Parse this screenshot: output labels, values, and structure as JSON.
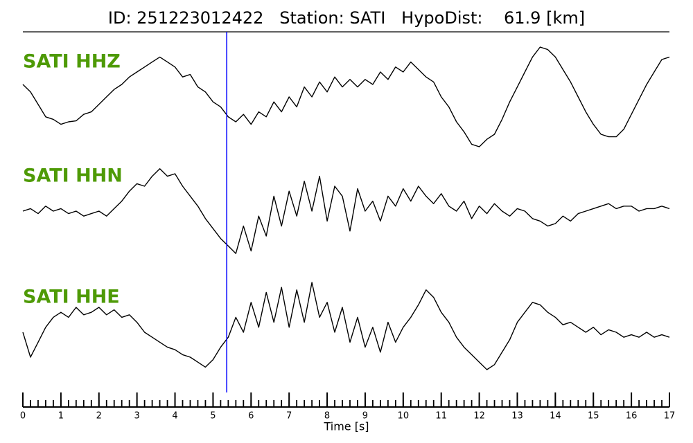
{
  "chart_data": {
    "type": "line",
    "title": "ID: 251223012422   Station: SATI   HypoDist:    61.9 [km]",
    "xlabel": "Time [s]",
    "xlim": [
      0,
      17
    ],
    "xticks": [
      0,
      1,
      2,
      3,
      4,
      5,
      6,
      7,
      8,
      9,
      10,
      11,
      12,
      13,
      14,
      15,
      16,
      17
    ],
    "minor_tick_step": 0.2,
    "pick_time": 5.36,
    "pick_color": "#0000ff",
    "label_color": "#4e9a06",
    "x": [
      0,
      0.2,
      0.4,
      0.6,
      0.8,
      1,
      1.2,
      1.4,
      1.6,
      1.8,
      2,
      2.2,
      2.4,
      2.6,
      2.8,
      3,
      3.2,
      3.4,
      3.6,
      3.8,
      4,
      4.2,
      4.4,
      4.6,
      4.8,
      5,
      5.2,
      5.4,
      5.6,
      5.8,
      6,
      6.2,
      6.4,
      6.6,
      6.8,
      7,
      7.2,
      7.4,
      7.6,
      7.8,
      8,
      8.2,
      8.4,
      8.6,
      8.8,
      9,
      9.2,
      9.4,
      9.6,
      9.8,
      10,
      10.2,
      10.4,
      10.6,
      10.8,
      11,
      11.2,
      11.4,
      11.6,
      11.8,
      12,
      12.2,
      12.4,
      12.6,
      12.8,
      13,
      13.2,
      13.4,
      13.6,
      13.8,
      14,
      14.2,
      14.4,
      14.6,
      14.8,
      15,
      15.2,
      15.4,
      15.6,
      15.8,
      16,
      16.2,
      16.4,
      16.6,
      16.8,
      17
    ],
    "series": [
      {
        "name": "SATI HHZ",
        "color": "#000000",
        "ylim": [
          -1,
          1
        ],
        "values": [
          0.25,
          0.1,
          -0.15,
          -0.4,
          -0.45,
          -0.55,
          -0.5,
          -0.48,
          -0.35,
          -0.3,
          -0.15,
          0.0,
          0.15,
          0.25,
          0.4,
          0.5,
          0.6,
          0.7,
          0.8,
          0.7,
          0.6,
          0.4,
          0.45,
          0.2,
          0.1,
          -0.1,
          -0.2,
          -0.4,
          -0.5,
          -0.35,
          -0.55,
          -0.3,
          -0.4,
          -0.1,
          -0.3,
          0.0,
          -0.2,
          0.2,
          0.0,
          0.3,
          0.1,
          0.4,
          0.2,
          0.35,
          0.2,
          0.35,
          0.25,
          0.5,
          0.35,
          0.6,
          0.5,
          0.7,
          0.55,
          0.4,
          0.3,
          0.0,
          -0.2,
          -0.5,
          -0.7,
          -0.95,
          -1.0,
          -0.85,
          -0.75,
          -0.45,
          -0.1,
          0.2,
          0.5,
          0.8,
          1.0,
          0.95,
          0.8,
          0.55,
          0.3,
          0.0,
          -0.3,
          -0.55,
          -0.75,
          -0.8,
          -0.8,
          -0.65,
          -0.35,
          -0.05,
          0.25,
          0.5,
          0.75,
          0.8
        ]
      },
      {
        "name": "SATI HHN",
        "color": "#000000",
        "ylim": [
          -1,
          1
        ],
        "values": [
          0.0,
          0.05,
          -0.05,
          0.1,
          0.0,
          0.05,
          -0.05,
          0.0,
          -0.1,
          -0.05,
          0.0,
          -0.1,
          0.05,
          0.2,
          0.4,
          0.55,
          0.5,
          0.7,
          0.85,
          0.7,
          0.75,
          0.5,
          0.3,
          0.1,
          -0.15,
          -0.35,
          -0.55,
          -0.7,
          -0.85,
          -0.3,
          -0.8,
          -0.1,
          -0.5,
          0.3,
          -0.3,
          0.4,
          -0.1,
          0.6,
          0.0,
          0.7,
          -0.2,
          0.5,
          0.3,
          -0.4,
          0.45,
          0.0,
          0.2,
          -0.2,
          0.3,
          0.1,
          0.45,
          0.2,
          0.5,
          0.3,
          0.15,
          0.35,
          0.1,
          0.0,
          0.2,
          -0.15,
          0.1,
          -0.05,
          0.15,
          0.0,
          -0.1,
          0.05,
          0.0,
          -0.15,
          -0.2,
          -0.3,
          -0.25,
          -0.1,
          -0.2,
          -0.05,
          0.0,
          0.05,
          0.1,
          0.15,
          0.05,
          0.1,
          0.1,
          0.0,
          0.05,
          0.05,
          0.1,
          0.05
        ]
      },
      {
        "name": "SATI HHE",
        "color": "#000000",
        "ylim": [
          -1,
          1
        ],
        "values": [
          0.0,
          -0.5,
          -0.2,
          0.1,
          0.3,
          0.4,
          0.3,
          0.5,
          0.35,
          0.4,
          0.5,
          0.35,
          0.45,
          0.3,
          0.35,
          0.2,
          0.0,
          -0.1,
          -0.2,
          -0.3,
          -0.35,
          -0.45,
          -0.5,
          -0.6,
          -0.7,
          -0.55,
          -0.3,
          -0.1,
          0.3,
          0.0,
          0.6,
          0.1,
          0.8,
          0.2,
          0.9,
          0.1,
          0.85,
          0.2,
          1.0,
          0.3,
          0.6,
          0.0,
          0.5,
          -0.2,
          0.3,
          -0.3,
          0.1,
          -0.4,
          0.2,
          -0.2,
          0.1,
          0.3,
          0.55,
          0.85,
          0.7,
          0.4,
          0.2,
          -0.1,
          -0.3,
          -0.45,
          -0.6,
          -0.75,
          -0.65,
          -0.4,
          -0.15,
          0.2,
          0.4,
          0.6,
          0.55,
          0.4,
          0.3,
          0.15,
          0.2,
          0.1,
          0.0,
          0.1,
          -0.05,
          0.05,
          0.0,
          -0.1,
          -0.05,
          -0.1,
          0.0,
          -0.1,
          -0.05,
          -0.1
        ]
      }
    ]
  }
}
